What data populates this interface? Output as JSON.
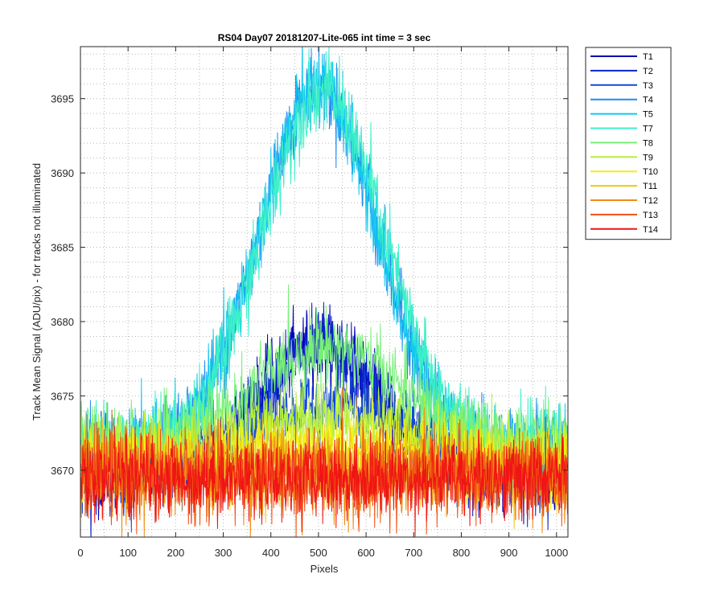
{
  "chart_data": {
    "type": "line",
    "title": "RS04 Day07 20181207-Lite-065 int time = 3 sec",
    "xlabel": "Pixels",
    "ylabel": "Track Mean Signal (ADU/pix) - for tracks not illuminated",
    "xlim": [
      0,
      1024
    ],
    "ylim": [
      3665.5,
      3698.5
    ],
    "xticks": [
      0,
      100,
      200,
      300,
      400,
      500,
      600,
      700,
      800,
      900,
      1000
    ],
    "yticks": [
      3670,
      3675,
      3680,
      3685,
      3690,
      3695
    ],
    "grid": "dotted, major and minor",
    "legend_position": "outside-top-right",
    "series": [
      {
        "name": "T1",
        "color": "#0000b4",
        "center": 500,
        "peak": 8.5,
        "width": 175,
        "base": 3669.9,
        "noise": 1.25
      },
      {
        "name": "T2",
        "color": "#0a24c8",
        "center": 500,
        "peak": 8.5,
        "width": 175,
        "base": 3669.9,
        "noise": 1.25
      },
      {
        "name": "T3",
        "color": "#1448dc",
        "center": 520,
        "peak": 4.2,
        "width": 220,
        "base": 3670.2,
        "noise": 1.2
      },
      {
        "name": "T4",
        "color": "#1e8cf0",
        "center": 500,
        "peak": 24.5,
        "width": 175,
        "base": 3671.3,
        "noise": 1.3
      },
      {
        "name": "T5",
        "color": "#14c8f0",
        "center": 500,
        "peak": 24.5,
        "width": 175,
        "base": 3671.3,
        "noise": 1.3
      },
      {
        "name": "T7",
        "color": "#3cf0c8",
        "center": 510,
        "peak": 24.0,
        "width": 180,
        "base": 3671.5,
        "noise": 1.3
      },
      {
        "name": "T8",
        "color": "#78f078",
        "center": 520,
        "peak": 6.5,
        "width": 210,
        "base": 3671.8,
        "noise": 1.2
      },
      {
        "name": "T9",
        "color": "#b4f03c",
        "center": 520,
        "peak": 2.5,
        "width": 240,
        "base": 3671.2,
        "noise": 1.2
      },
      {
        "name": "T10",
        "color": "#f0f014",
        "center": 520,
        "peak": 1.2,
        "width": 260,
        "base": 3670.6,
        "noise": 1.2
      },
      {
        "name": "T11",
        "color": "#f0c814",
        "center": 520,
        "peak": 0.4,
        "width": 260,
        "base": 3670.0,
        "noise": 1.3
      },
      {
        "name": "T12",
        "color": "#f08c14",
        "center": 520,
        "peak": 0.0,
        "width": 260,
        "base": 3669.6,
        "noise": 1.4
      },
      {
        "name": "T13",
        "color": "#f05014",
        "center": 520,
        "peak": 0.0,
        "width": 260,
        "base": 3669.6,
        "noise": 1.4
      },
      {
        "name": "T14",
        "color": "#f01414",
        "center": 520,
        "peak": 0.0,
        "width": 260,
        "base": 3669.5,
        "noise": 1.35
      }
    ]
  }
}
